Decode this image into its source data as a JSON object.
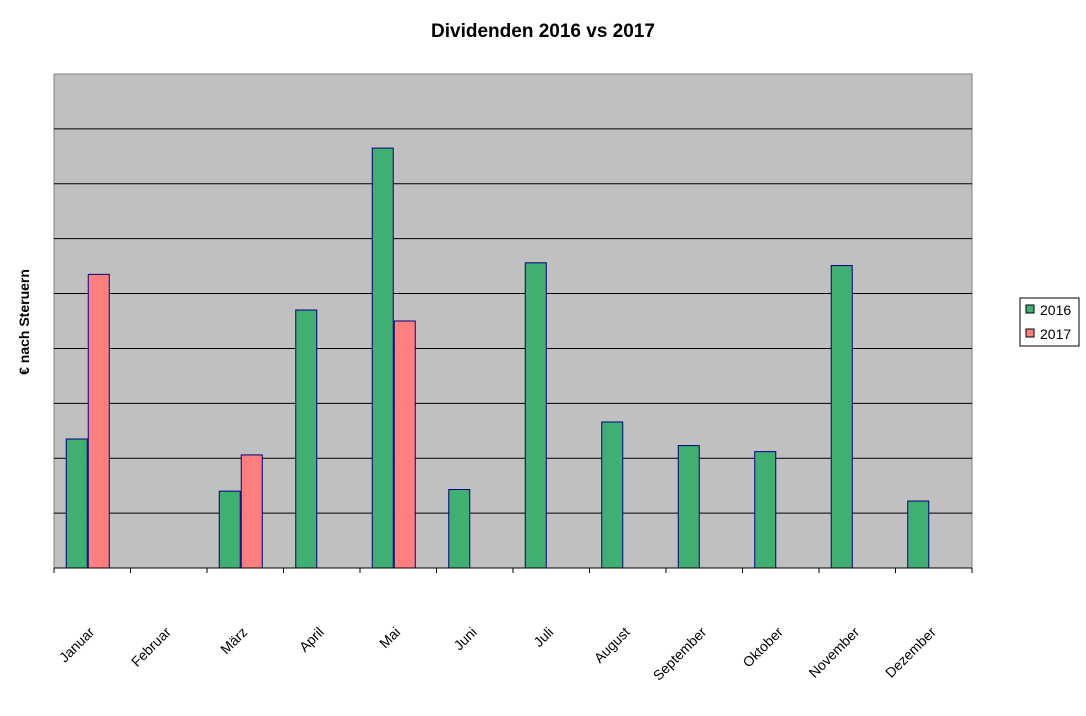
{
  "chart_data": {
    "type": "bar",
    "title": "Dividenden 2016 vs 2017",
    "xlabel": "",
    "ylabel": "€ nach Steruern",
    "categories": [
      "Januar",
      "Februar",
      "März",
      "April",
      "Mai",
      "Juni",
      "Juli",
      "August",
      "September",
      "Oktober",
      "November",
      "Dezember"
    ],
    "series": [
      {
        "name": "2016",
        "color": "#3fb072",
        "values": [
          23.5,
          0,
          14,
          47,
          76.5,
          14.3,
          55.6,
          26.6,
          22.3,
          21.2,
          55.1,
          12.2
        ]
      },
      {
        "name": "2017",
        "color": "#ff7f7f",
        "values": [
          53.5,
          0,
          20.6,
          0,
          45,
          0,
          0,
          0,
          0,
          0,
          0,
          0
        ]
      }
    ],
    "ylim": [
      0,
      90
    ],
    "grid": true,
    "legend": "right",
    "plot_background": "#c0c0c0",
    "bar_outline": "#000080"
  }
}
